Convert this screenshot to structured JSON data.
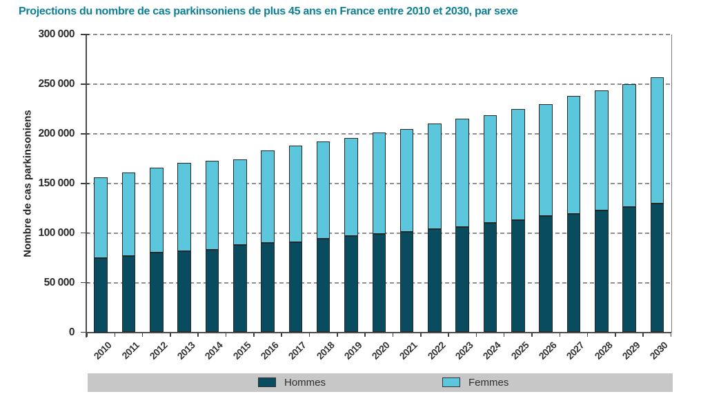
{
  "title": {
    "text": "Projections du nombre de cas parkinsoniens de plus 45 ans en France entre 2010 et 2030, par sexe",
    "color": "#0c7f95"
  },
  "chart_data": {
    "type": "bar",
    "stacked": true,
    "title": "Projections du nombre de cas parkinsoniens de plus 45 ans en France entre 2010 et 2030, par sexe",
    "xlabel": "",
    "ylabel": "Nombre de cas parkinsoniens",
    "ylim": [
      0,
      300000
    ],
    "ytick_step": 50000,
    "ytick_labels": [
      "0",
      "50 000",
      "100 000",
      "150 000",
      "200 000",
      "250 000",
      "300 000"
    ],
    "grid": "horizontal-dashed",
    "legend_position": "bottom",
    "categories": [
      "2010",
      "2011",
      "2012",
      "2013",
      "2014",
      "2015",
      "2016",
      "2017",
      "2018",
      "2019",
      "2020",
      "2021",
      "2022",
      "2023",
      "2024",
      "2025",
      "2026",
      "2027",
      "2028",
      "2029",
      "2030"
    ],
    "series": [
      {
        "name": "Hommes",
        "color": "#0a4c5f",
        "values": [
          75000,
          77000,
          80000,
          82000,
          83000,
          88000,
          90000,
          91000,
          94000,
          97000,
          99000,
          101000,
          104000,
          106000,
          110000,
          113000,
          117000,
          119000,
          123000,
          126000,
          130000
        ]
      },
      {
        "name": "Femmes",
        "color": "#5cc6dd",
        "values": [
          81000,
          84000,
          86000,
          89000,
          90000,
          86000,
          93000,
          97000,
          98000,
          99000,
          102000,
          104000,
          106000,
          109000,
          109000,
          112000,
          113000,
          119000,
          121000,
          124000,
          127000
        ]
      }
    ],
    "totals": [
      156000,
      161000,
      166000,
      171000,
      173000,
      174000,
      183000,
      188000,
      192000,
      196000,
      201000,
      205000,
      210000,
      215000,
      219000,
      225000,
      230000,
      238000,
      244000,
      250000,
      257000
    ]
  },
  "legend": {
    "background": "#c7c7c7",
    "items": [
      {
        "label": "Hommes",
        "color": "#0a4c5f"
      },
      {
        "label": "Femmes",
        "color": "#5cc6dd"
      }
    ]
  }
}
